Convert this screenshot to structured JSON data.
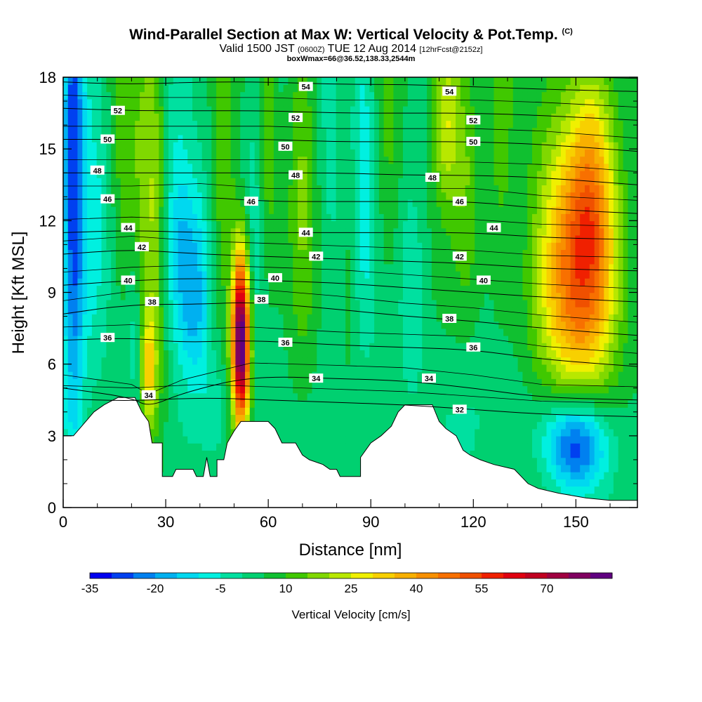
{
  "header": {
    "title": "Wind-Parallel Section at Max W: Vertical Velocity & Pot.Temp.",
    "title_mark": "(C)",
    "subtitle_pre": "Valid 1500 JST ",
    "subtitle_utc": "(0600Z)",
    "subtitle_mid": " TUE 12 Aug 2014 ",
    "subtitle_fcst": "[12hrFcst@2152z]",
    "box_line": "boxWmax=66@36.52,138.33,2544m"
  },
  "chart_data": {
    "type": "heatmap",
    "xlabel": "Distance [nm]",
    "ylabel": "Height [Kft MSL]",
    "xlim": [
      0,
      168
    ],
    "ylim": [
      0,
      18
    ],
    "x_ticks": [
      "0",
      "30",
      "60",
      "90",
      "120",
      "150"
    ],
    "y_ticks": [
      "0",
      "3",
      "6",
      "9",
      "12",
      "15",
      "18"
    ],
    "colorbar": {
      "title": "Vertical Velocity [cm/s]",
      "labels": [
        "-35",
        "-20",
        "-5",
        "10",
        "25",
        "40",
        "55",
        "70"
      ],
      "levels": [
        -35,
        -30,
        -25,
        -20,
        -15,
        -10,
        -5,
        0,
        5,
        10,
        15,
        20,
        25,
        30,
        35,
        40,
        45,
        50,
        55,
        60,
        65,
        70,
        75,
        80
      ],
      "colors": [
        "#0000f0",
        "#0040f0",
        "#0080f0",
        "#00b0f0",
        "#00d8f0",
        "#00f0e0",
        "#00e0a0",
        "#00d070",
        "#10c030",
        "#40c800",
        "#80d800",
        "#b8e800",
        "#f0f000",
        "#f8d000",
        "#f8b000",
        "#f89000",
        "#f87000",
        "#f05000",
        "#f02000",
        "#e00010",
        "#c00020",
        "#a00040",
        "#800060",
        "#600080"
      ]
    },
    "terrain": [
      [
        0,
        3.0
      ],
      [
        3,
        3.0
      ],
      [
        6,
        3.5
      ],
      [
        9,
        4.0
      ],
      [
        12,
        4.3
      ],
      [
        16,
        4.6
      ],
      [
        21,
        4.6
      ],
      [
        23,
        4.0
      ],
      [
        25,
        3.6
      ],
      [
        26,
        2.7
      ],
      [
        29,
        2.7
      ],
      [
        29,
        1.3
      ],
      [
        32,
        1.3
      ],
      [
        33,
        1.6
      ],
      [
        38,
        1.6
      ],
      [
        39,
        1.3
      ],
      [
        41,
        1.3
      ],
      [
        42,
        2.1
      ],
      [
        43,
        1.3
      ],
      [
        45,
        1.3
      ],
      [
        45,
        2.0
      ],
      [
        47,
        2.0
      ],
      [
        48,
        2.7
      ],
      [
        50,
        3.2
      ],
      [
        52,
        3.6
      ],
      [
        60,
        3.6
      ],
      [
        62,
        3.3
      ],
      [
        64,
        2.7
      ],
      [
        68,
        2.7
      ],
      [
        70,
        2.2
      ],
      [
        72,
        2.0
      ],
      [
        76,
        1.8
      ],
      [
        78,
        1.6
      ],
      [
        80,
        1.6
      ],
      [
        81,
        1.3
      ],
      [
        87,
        1.3
      ],
      [
        87,
        2.1
      ],
      [
        90,
        2.7
      ],
      [
        93,
        3.0
      ],
      [
        96,
        3.4
      ],
      [
        98,
        4.0
      ],
      [
        100,
        4.3
      ],
      [
        108,
        4.3
      ],
      [
        110,
        3.6
      ],
      [
        112,
        3.3
      ],
      [
        115,
        3.0
      ],
      [
        117,
        2.4
      ],
      [
        119,
        2.2
      ],
      [
        122,
        2.0
      ],
      [
        126,
        1.8
      ],
      [
        132,
        1.6
      ],
      [
        134,
        1.3
      ],
      [
        136,
        1.0
      ],
      [
        139,
        0.8
      ],
      [
        145,
        0.6
      ],
      [
        153,
        0.4
      ],
      [
        160,
        0.3
      ],
      [
        168,
        0.3
      ]
    ],
    "w_features": [
      {
        "x": 3,
        "z": 15,
        "sx": 2.2,
        "sz": 9,
        "w": -32
      },
      {
        "x": 9,
        "z": 14,
        "sx": 3,
        "sz": 6,
        "w": -8
      },
      {
        "x": 18,
        "z": 15,
        "sx": 3,
        "sz": 5,
        "w": 10
      },
      {
        "x": 26,
        "z": 13,
        "sx": 3.5,
        "sz": 8,
        "w": 18
      },
      {
        "x": 25,
        "z": 5.8,
        "sx": 1.5,
        "sz": 1.5,
        "w": 22
      },
      {
        "x": 21,
        "z": 7.5,
        "sx": 2,
        "sz": 3,
        "w": -10
      },
      {
        "x": 35,
        "z": 10.5,
        "sx": 4.5,
        "sz": 3,
        "w": -18
      },
      {
        "x": 39,
        "z": 8,
        "sx": 3,
        "sz": 2.5,
        "w": -12
      },
      {
        "x": 32,
        "z": 14,
        "sx": 3,
        "sz": 5,
        "w": -6
      },
      {
        "x": 52,
        "z": 6.5,
        "sx": 1.8,
        "sz": 2.3,
        "w": 66
      },
      {
        "x": 52,
        "z": 8.5,
        "sx": 1.8,
        "sz": 2.5,
        "w": 28
      },
      {
        "x": 47,
        "z": 13,
        "sx": 2.5,
        "sz": 5,
        "w": 12
      },
      {
        "x": 56,
        "z": 12,
        "sx": 2,
        "sz": 6,
        "w": -5
      },
      {
        "x": 45,
        "z": 4,
        "sx": 3,
        "sz": 1.5,
        "w": -8
      },
      {
        "x": 60,
        "z": 15,
        "sx": 2,
        "sz": 4,
        "w": 10
      },
      {
        "x": 70,
        "z": 15,
        "sx": 3,
        "sz": 6,
        "w": 12
      },
      {
        "x": 78,
        "z": 14,
        "sx": 2.5,
        "sz": 6,
        "w": -5
      },
      {
        "x": 88,
        "z": 15,
        "sx": 2.5,
        "sz": 5,
        "w": -12
      },
      {
        "x": 84,
        "z": 10,
        "sx": 2,
        "sz": 4,
        "w": 5
      },
      {
        "x": 95,
        "z": 15,
        "sx": 3,
        "sz": 5,
        "w": 8
      },
      {
        "x": 102,
        "z": 9,
        "sx": 2.5,
        "sz": 3,
        "w": -8
      },
      {
        "x": 108,
        "z": 12,
        "sx": 2,
        "sz": 5,
        "w": 0
      },
      {
        "x": 112,
        "z": 16.5,
        "sx": 3,
        "sz": 2.5,
        "w": 22
      },
      {
        "x": 118,
        "z": 14,
        "sx": 3,
        "sz": 4,
        "w": 10
      },
      {
        "x": 128,
        "z": 15,
        "sx": 3,
        "sz": 5,
        "w": 8
      },
      {
        "x": 150,
        "z": 9.5,
        "sx": 9,
        "sz": 4,
        "w": 30
      },
      {
        "x": 155,
        "z": 13.5,
        "sx": 4.5,
        "sz": 4,
        "w": 22
      },
      {
        "x": 148,
        "z": 11,
        "sx": 7,
        "sz": 6,
        "w": 12
      },
      {
        "x": 150,
        "z": 2.6,
        "sx": 6,
        "sz": 1.3,
        "w": -30
      },
      {
        "x": 147,
        "z": 3.5,
        "sx": 9,
        "sz": 2,
        "w": -10
      },
      {
        "x": 120,
        "z": 4,
        "sx": 8,
        "sz": 2,
        "w": -3
      }
    ],
    "theta_contours": [
      {
        "v": 32,
        "z0": 2.0,
        "x0": 25,
        "pts": [
          [
            0,
            4.55
          ],
          [
            20,
            4.45
          ],
          [
            40,
            4.6
          ],
          [
            60,
            4.5
          ],
          [
            80,
            4.4
          ],
          [
            100,
            4.3
          ],
          [
            120,
            4.1
          ],
          [
            140,
            3.9
          ],
          [
            168,
            3.8
          ]
        ]
      },
      {
        "v": 34,
        "z0": 3.5,
        "pts": [
          [
            0,
            5.0
          ],
          [
            20,
            4.6
          ],
          [
            25,
            4.2
          ],
          [
            35,
            4.8
          ],
          [
            55,
            5.5
          ],
          [
            80,
            5.4
          ],
          [
            100,
            5.3
          ],
          [
            120,
            5.0
          ],
          [
            140,
            4.6
          ],
          [
            168,
            4.5
          ]
        ]
      },
      {
        "v": 36,
        "z0": 5.5,
        "pts": [
          [
            0,
            7.0
          ],
          [
            20,
            7.1
          ],
          [
            35,
            6.9
          ],
          [
            55,
            7.0
          ],
          [
            80,
            6.8
          ],
          [
            100,
            6.7
          ],
          [
            120,
            6.6
          ],
          [
            140,
            6.2
          ],
          [
            168,
            5.9
          ]
        ]
      },
      {
        "v": 38,
        "z0": 7.2,
        "pts": [
          [
            0,
            8.1
          ],
          [
            20,
            8.5
          ],
          [
            40,
            8.5
          ],
          [
            55,
            8.6
          ],
          [
            80,
            8.3
          ],
          [
            100,
            8.0
          ],
          [
            120,
            7.8
          ],
          [
            140,
            7.5
          ],
          [
            168,
            7.2
          ]
        ]
      },
      {
        "v": 40,
        "z0": 8.5,
        "pts": [
          [
            0,
            9.3
          ],
          [
            20,
            9.5
          ],
          [
            40,
            9.6
          ],
          [
            60,
            9.5
          ],
          [
            80,
            9.4
          ],
          [
            100,
            9.2
          ],
          [
            120,
            9.0
          ],
          [
            140,
            8.8
          ],
          [
            168,
            8.6
          ]
        ]
      },
      {
        "v": 42,
        "z0": 9.8,
        "pts": [
          [
            0,
            10.6
          ],
          [
            20,
            10.8
          ],
          [
            40,
            10.6
          ],
          [
            60,
            10.5
          ],
          [
            80,
            10.4
          ],
          [
            100,
            10.3
          ],
          [
            120,
            10.2
          ],
          [
            140,
            10.0
          ],
          [
            168,
            9.9
          ]
        ]
      },
      {
        "v": 44,
        "z0": 11.0,
        "pts": [
          [
            0,
            11.5
          ],
          [
            20,
            11.6
          ],
          [
            40,
            11.5
          ],
          [
            60,
            11.5
          ],
          [
            80,
            11.5
          ],
          [
            100,
            11.5
          ],
          [
            120,
            11.5
          ],
          [
            140,
            11.3
          ],
          [
            168,
            11.2
          ]
        ]
      },
      {
        "v": 46,
        "z0": 12.2,
        "pts": [
          [
            0,
            12.9
          ],
          [
            20,
            12.9
          ],
          [
            40,
            13.0
          ],
          [
            60,
            12.8
          ],
          [
            80,
            12.8
          ],
          [
            100,
            12.8
          ],
          [
            120,
            12.8
          ],
          [
            140,
            12.5
          ],
          [
            168,
            12.3
          ]
        ]
      },
      {
        "v": 48,
        "z0": 13.4,
        "pts": [
          [
            0,
            14.0
          ],
          [
            20,
            14.0
          ],
          [
            40,
            14.0
          ],
          [
            60,
            14.0
          ],
          [
            80,
            14.0
          ],
          [
            100,
            13.9
          ],
          [
            120,
            13.9
          ],
          [
            140,
            13.8
          ],
          [
            168,
            13.5
          ]
        ]
      },
      {
        "v": 50,
        "z0": 14.6,
        "pts": [
          [
            0,
            15.4
          ],
          [
            20,
            15.4
          ],
          [
            40,
            15.4
          ],
          [
            60,
            15.4
          ],
          [
            80,
            15.3
          ],
          [
            100,
            15.3
          ],
          [
            120,
            15.3
          ],
          [
            140,
            15.2
          ],
          [
            168,
            14.9
          ]
        ]
      },
      {
        "v": 52,
        "z0": 15.8,
        "pts": [
          [
            0,
            16.7
          ],
          [
            20,
            16.6
          ],
          [
            40,
            16.6
          ],
          [
            60,
            16.6
          ],
          [
            80,
            16.5
          ],
          [
            100,
            16.5
          ],
          [
            120,
            16.5
          ],
          [
            140,
            16.4
          ],
          [
            168,
            16.2
          ]
        ]
      },
      {
        "v": 54,
        "z0": 17.0,
        "pts": [
          [
            0,
            17.8
          ],
          [
            20,
            17.7
          ],
          [
            40,
            17.8
          ],
          [
            60,
            17.8
          ],
          [
            80,
            17.7
          ],
          [
            100,
            17.7
          ],
          [
            120,
            17.6
          ],
          [
            140,
            17.5
          ],
          [
            168,
            17.4
          ]
        ]
      }
    ],
    "theta_labels": [
      {
        "text": "54",
        "x": 71,
        "y": 17.6
      },
      {
        "text": "54",
        "x": 113,
        "y": 17.4
      },
      {
        "text": "52",
        "x": 16,
        "y": 16.6
      },
      {
        "text": "52",
        "x": 68,
        "y": 16.3
      },
      {
        "text": "52",
        "x": 120,
        "y": 16.2
      },
      {
        "text": "50",
        "x": 13,
        "y": 15.4
      },
      {
        "text": "50",
        "x": 65,
        "y": 15.1
      },
      {
        "text": "50",
        "x": 120,
        "y": 15.3
      },
      {
        "text": "48",
        "x": 10,
        "y": 14.1
      },
      {
        "text": "48",
        "x": 68,
        "y": 13.9
      },
      {
        "text": "48",
        "x": 108,
        "y": 13.8
      },
      {
        "text": "46",
        "x": 13,
        "y": 12.9
      },
      {
        "text": "46",
        "x": 55,
        "y": 12.8
      },
      {
        "text": "46",
        "x": 116,
        "y": 12.8
      },
      {
        "text": "44",
        "x": 19,
        "y": 11.7
      },
      {
        "text": "44",
        "x": 71,
        "y": 11.5
      },
      {
        "text": "44",
        "x": 126,
        "y": 11.7
      },
      {
        "text": "42",
        "x": 23,
        "y": 10.9
      },
      {
        "text": "42",
        "x": 74,
        "y": 10.5
      },
      {
        "text": "42",
        "x": 116,
        "y": 10.5
      },
      {
        "text": "40",
        "x": 19,
        "y": 9.5
      },
      {
        "text": "40",
        "x": 62,
        "y": 9.6
      },
      {
        "text": "40",
        "x": 123,
        "y": 9.5
      },
      {
        "text": "38",
        "x": 26,
        "y": 8.6
      },
      {
        "text": "38",
        "x": 58,
        "y": 8.7
      },
      {
        "text": "38",
        "x": 113,
        "y": 7.9
      },
      {
        "text": "36",
        "x": 13,
        "y": 7.1
      },
      {
        "text": "36",
        "x": 65,
        "y": 6.9
      },
      {
        "text": "36",
        "x": 120,
        "y": 6.7
      },
      {
        "text": "34",
        "x": 25,
        "y": 4.7
      },
      {
        "text": "34",
        "x": 74,
        "y": 5.4
      },
      {
        "text": "34",
        "x": 107,
        "y": 5.4
      },
      {
        "text": "32",
        "x": 116,
        "y": 4.1
      }
    ]
  }
}
